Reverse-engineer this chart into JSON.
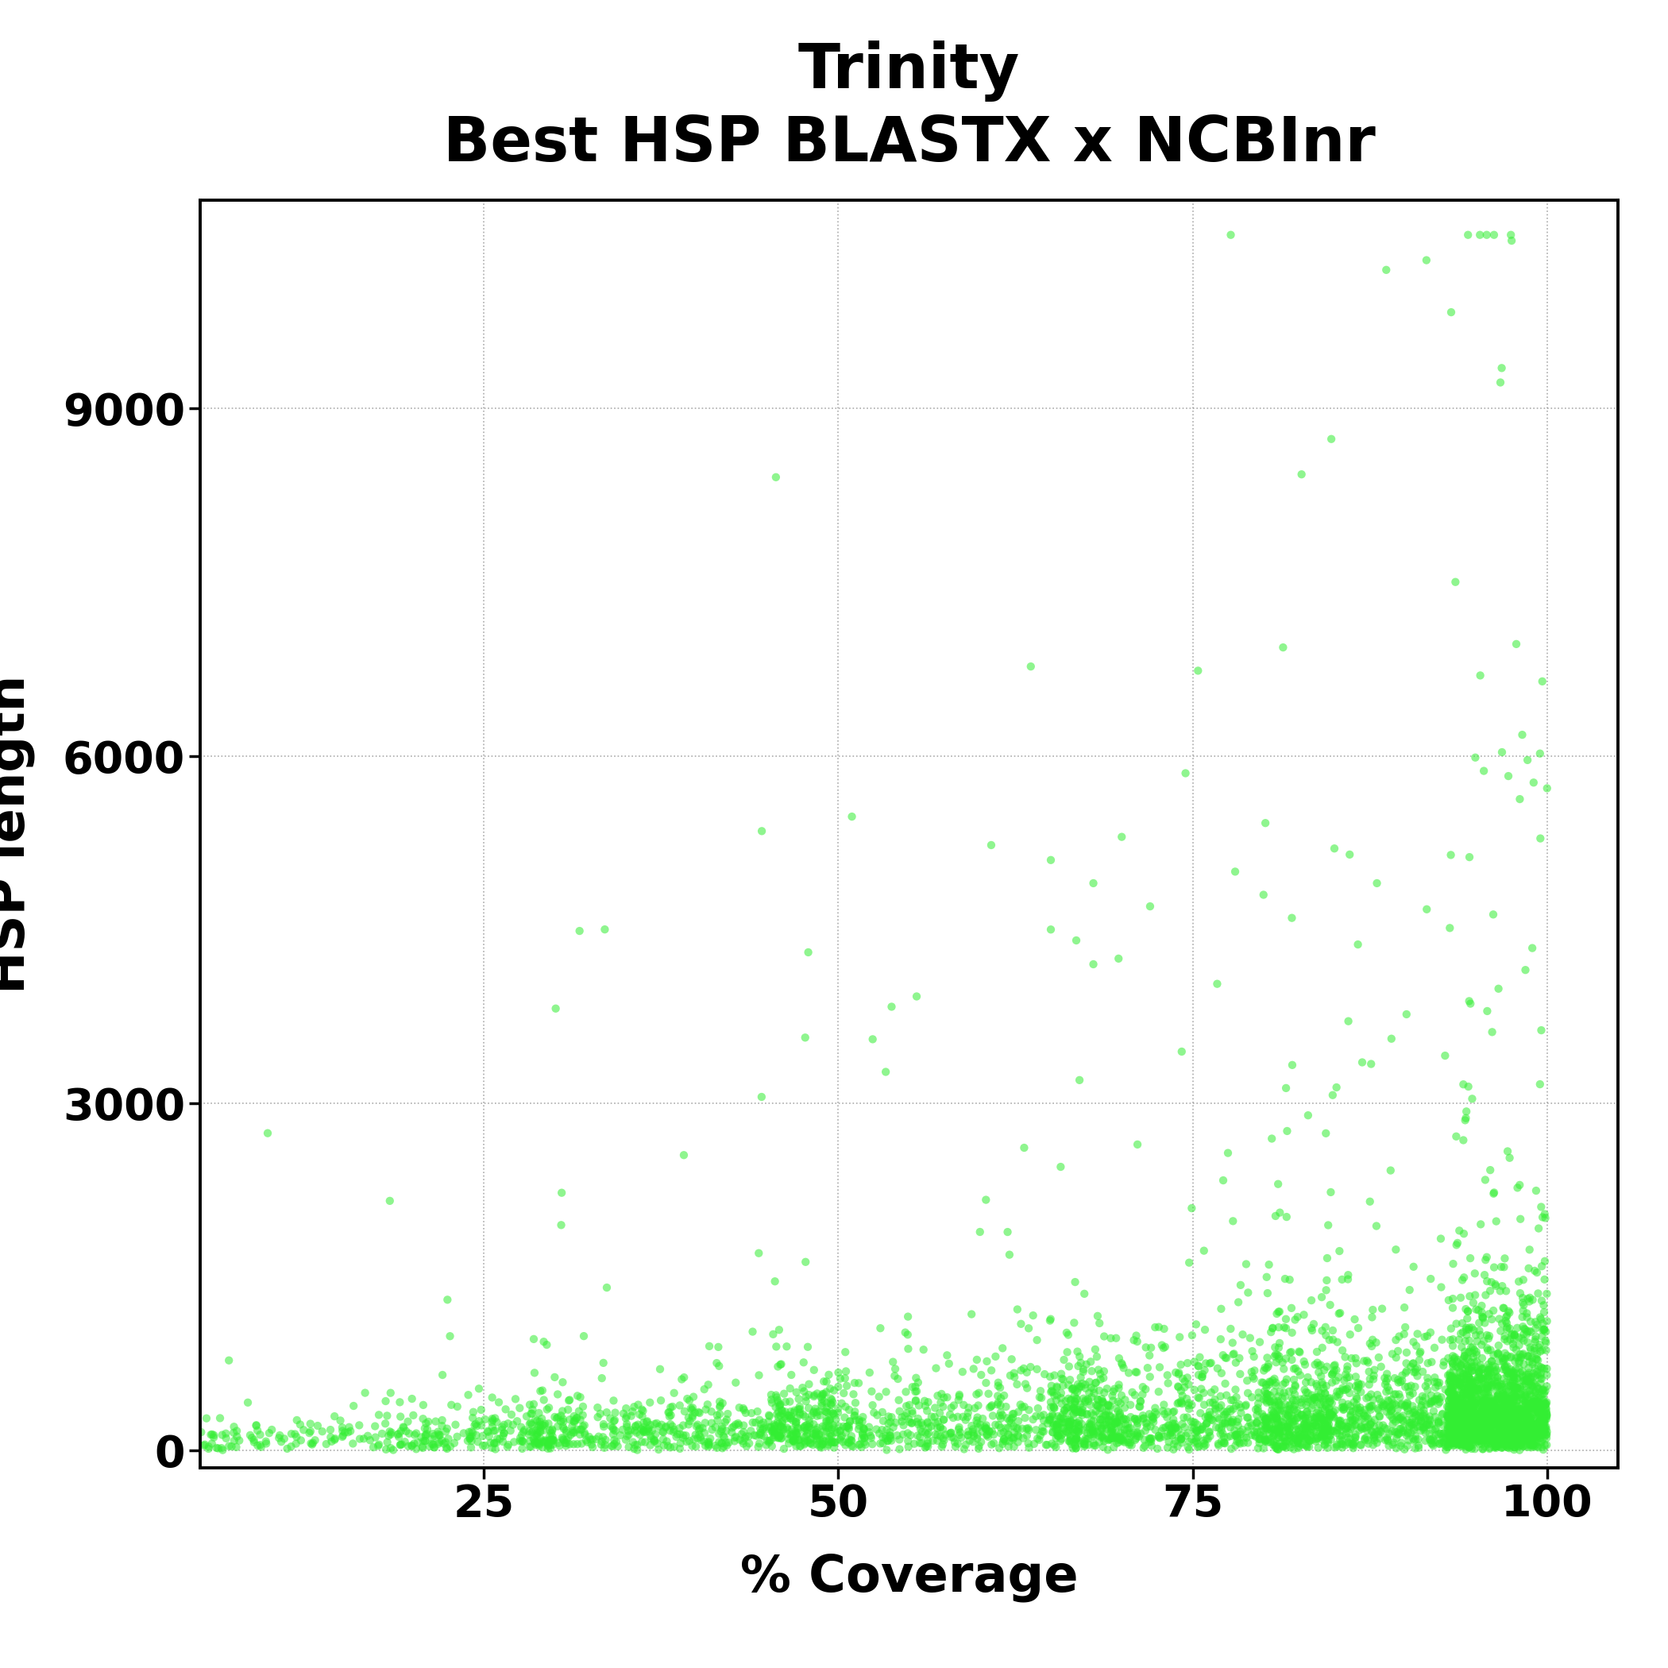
{
  "title_line1": "Trinity",
  "title_line2": "Best HSP BLASTX x NCBInr",
  "xlabel": "% Coverage",
  "ylabel": "HSP length",
  "xlim": [
    5,
    105
  ],
  "ylim": [
    -150,
    10800
  ],
  "xticks": [
    25,
    50,
    75,
    100
  ],
  "yticks": [
    0,
    3000,
    6000,
    9000
  ],
  "point_color": "#33EE33",
  "point_alpha": 0.55,
  "point_size": 55,
  "contour_color": "#001040",
  "background_color": "#ffffff",
  "grid_color": "#888888",
  "title_fontsize": 56,
  "axis_label_fontsize": 46,
  "tick_fontsize": 40,
  "seed": 42,
  "n_points": 5000
}
